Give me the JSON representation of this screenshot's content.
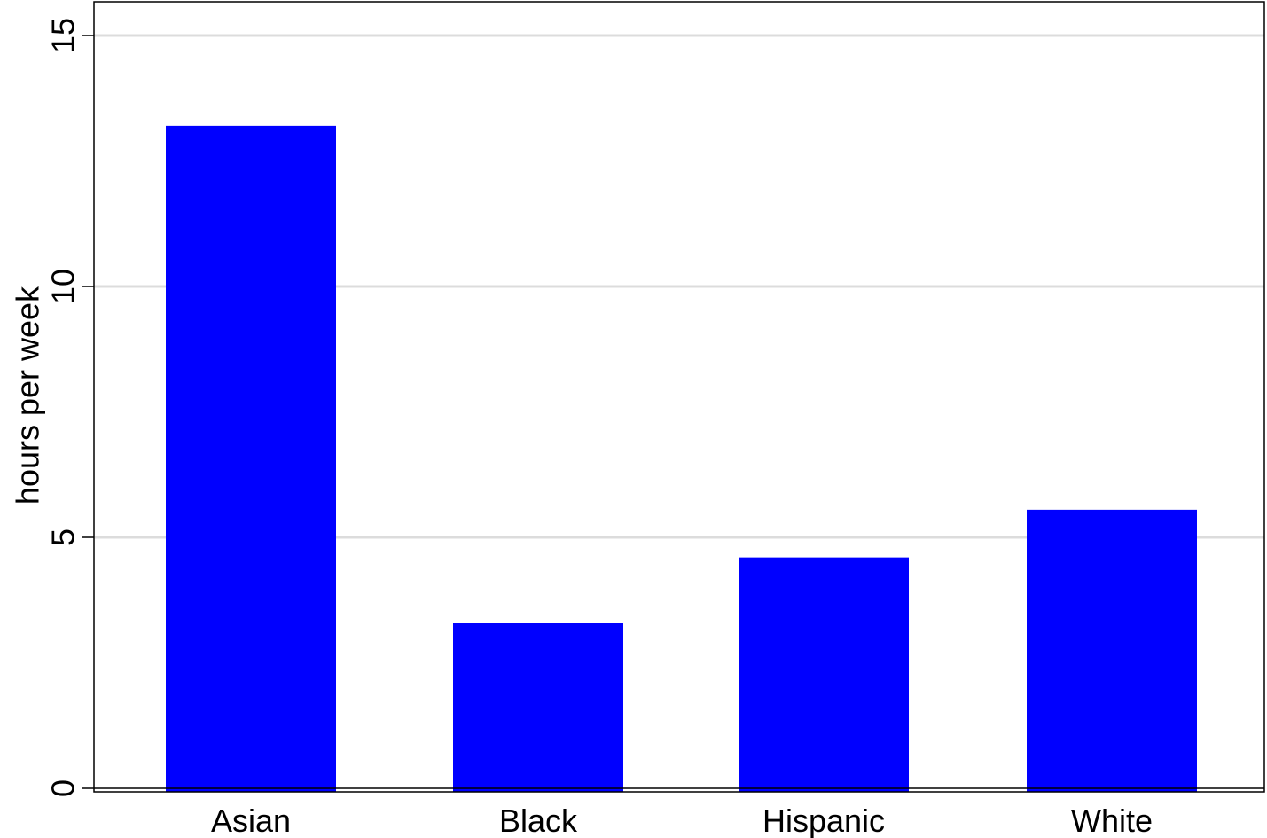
{
  "chart_data": {
    "type": "bar",
    "categories": [
      "Asian",
      "Black",
      "Hispanic",
      "White"
    ],
    "values": [
      13.2,
      3.3,
      4.6,
      5.55
    ],
    "ylabel": "hours per week",
    "xlabel": "",
    "ylim": [
      0,
      15.75
    ],
    "yticks": [
      0,
      5,
      10,
      15
    ],
    "grid": true,
    "colors": {
      "bar": "#0000ff",
      "grid": "#dcdcdc",
      "axis": "#000000"
    }
  }
}
